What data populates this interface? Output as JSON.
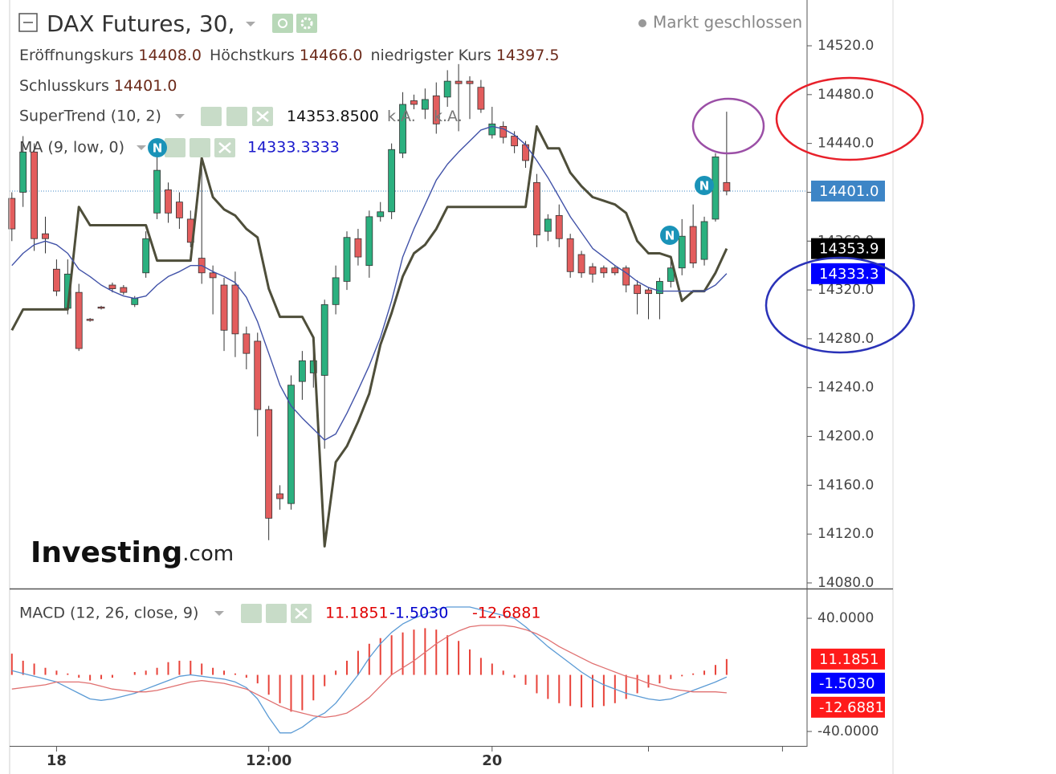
{
  "header": {
    "title": "DAX Futures, 30,",
    "status": "Markt geschlossen",
    "ohlc": [
      {
        "label": "Eröffnungskurs",
        "value": "14408.0"
      },
      {
        "label": "Höchstkurs",
        "value": "14466.0"
      },
      {
        "label": "niedrigster Kurs",
        "value": "14397.5"
      },
      {
        "label": "Schlusskurs",
        "value": "14401.0"
      }
    ]
  },
  "watermark": [
    "Investing",
    ".com"
  ],
  "event_marker": "N",
  "chart_data": [
    {
      "type": "candlestick",
      "up_color": "#2bb07f",
      "down_color": "#e35d5d",
      "xlim": [
        -0.2,
        71.2
      ],
      "ylim": [
        14075.4,
        14557.5
      ],
      "yticks": [
        {
          "value": 14520,
          "label": "14520.0"
        },
        {
          "value": 14480,
          "label": "14480.0"
        },
        {
          "value": 14440,
          "label": "14440.0"
        },
        {
          "value": 14400,
          "label": "14400.0"
        },
        {
          "value": 14360,
          "label": "14360.0"
        },
        {
          "value": 14320,
          "label": "14320.0"
        },
        {
          "value": 14280,
          "label": "14280.0"
        },
        {
          "value": 14240,
          "label": "14240.0"
        },
        {
          "value": 14200,
          "label": "14200.0"
        },
        {
          "value": 14160,
          "label": "14160.0"
        },
        {
          "value": 14120,
          "label": "14120.0"
        },
        {
          "value": 14080,
          "label": "14080.0"
        }
      ],
      "last_price": {
        "value": 14401,
        "label": "14401.0",
        "color": "#3d85c6"
      },
      "open": [
        14395,
        14400,
        14433,
        14366,
        14337,
        14305,
        14318,
        14296,
        14306,
        14324,
        14322,
        14308,
        14334,
        14383,
        14402,
        14392,
        14378,
        14346,
        14334,
        14324,
        14324,
        14284,
        14278,
        14222,
        14153,
        14145,
        14245,
        14252,
        14250,
        14308,
        14327,
        14362,
        14340,
        14380,
        14384,
        14432,
        14475,
        14468,
        14479,
        14478,
        14491,
        14491,
        14486,
        14447,
        14454,
        14446,
        14439,
        14408,
        14368,
        14381,
        14362,
        14349,
        14339,
        14338,
        14338,
        14338,
        14324,
        14320,
        14317,
        14327,
        14338,
        14372,
        14345,
        14378,
        14408
      ],
      "high": [
        14400,
        14446,
        14440,
        14380,
        14345,
        14345,
        14325,
        14297,
        14307,
        14326,
        14324,
        14315,
        14368,
        14430,
        14408,
        14400,
        14385,
        14430,
        14340,
        14330,
        14335,
        14290,
        14285,
        14225,
        14160,
        14250,
        14270,
        14280,
        14312,
        14340,
        14368,
        14370,
        14385,
        14392,
        14440,
        14482,
        14480,
        14485,
        14490,
        14500,
        14505,
        14495,
        14492,
        14470,
        14458,
        14450,
        14442,
        14415,
        14382,
        14390,
        14366,
        14352,
        14342,
        14340,
        14340,
        14340,
        14328,
        14322,
        14330,
        14348,
        14378,
        14390,
        14380,
        14432,
        14466
      ],
      "low": [
        14360,
        14388,
        14352,
        14350,
        14315,
        14300,
        14270,
        14294,
        14304,
        14318,
        14316,
        14306,
        14330,
        14378,
        14375,
        14370,
        14355,
        14325,
        14300,
        14270,
        14265,
        14255,
        14200,
        14115,
        14140,
        14140,
        14230,
        14240,
        14190,
        14300,
        14320,
        14340,
        14330,
        14376,
        14378,
        14428,
        14468,
        14460,
        14448,
        14470,
        14450,
        14460,
        14465,
        14444,
        14440,
        14432,
        14420,
        14355,
        14360,
        14355,
        14330,
        14330,
        14326,
        14330,
        14332,
        14318,
        14300,
        14296,
        14296,
        14322,
        14332,
        14338,
        14340,
        14376,
        14397.5
      ],
      "close": [
        14370,
        14433,
        14362,
        14362,
        14319,
        14333,
        14272,
        14295,
        14305,
        14321,
        14318,
        14313,
        14362,
        14418,
        14383,
        14379,
        14359,
        14334,
        14330,
        14287,
        14284,
        14268,
        14222,
        14133,
        14149,
        14242,
        14262,
        14262,
        14308,
        14330,
        14363,
        14347,
        14380,
        14384,
        14435,
        14472,
        14472,
        14476,
        14456,
        14491,
        14489,
        14489,
        14468,
        14456,
        14445,
        14438,
        14426,
        14365,
        14378,
        14362,
        14335,
        14334,
        14333,
        14334,
        14334,
        14324,
        14317,
        14317,
        14327,
        14338,
        14364,
        14342,
        14376,
        14429,
        14401
      ],
      "series": [
        {
          "name": "SuperTrend (10, 2)",
          "color": "#4e4e3a",
          "width": 3,
          "text_color": "#111111",
          "legend_values": [
            "14353.8500",
            "k.A.",
            "k.A."
          ],
          "badge": "14353.9",
          "badge_color": "#000000",
          "values": [
            14287,
            14304,
            14304,
            14304,
            14304,
            14304,
            14388,
            14373,
            14373,
            14373,
            14373,
            14373,
            14373,
            14344,
            14344,
            14344,
            14344,
            14428,
            14396,
            14386,
            14381,
            14370,
            14363,
            14321,
            14298,
            14298,
            14298,
            14281,
            14110,
            14179,
            14192,
            14212,
            14235,
            14275,
            14301,
            14331,
            14350,
            14357,
            14370,
            14388,
            14388,
            14388,
            14388,
            14388,
            14388,
            14388,
            14388,
            14454,
            14436,
            14436,
            14416,
            14405,
            14396,
            14393,
            14390,
            14383,
            14360,
            14350,
            14350,
            14347,
            14311,
            14319,
            14319,
            14334,
            14353.85
          ]
        },
        {
          "name": "MA (9, low, 0)",
          "color": "#4152a8",
          "width": 1.4,
          "text_color": "#1a1acc",
          "legend_values": [
            "14333.3333"
          ],
          "badge": "14333.3",
          "badge_color": "#0000ff",
          "values": [
            14340,
            14350,
            14357,
            14360,
            14357,
            14350,
            14337,
            14331,
            14324,
            14319,
            14315,
            14313,
            14315,
            14324,
            14331,
            14335,
            14340,
            14340,
            14335,
            14331,
            14326,
            14314,
            14294,
            14268,
            14242,
            14225,
            14215,
            14206,
            14197,
            14202,
            14219,
            14238,
            14258,
            14281,
            14311,
            14347,
            14370,
            14390,
            14410,
            14423,
            14433,
            14442,
            14451,
            14454,
            14452,
            14447,
            14439,
            14426,
            14412,
            14396,
            14380,
            14367,
            14354,
            14347,
            14340,
            14334,
            14327,
            14322,
            14319,
            14319,
            14319,
            14319,
            14319,
            14324,
            14333.3333
          ]
        }
      ]
    },
    {
      "type": "macd",
      "title": "MACD (12, 26, close, 9)",
      "xlim": [
        -0.2,
        71.2
      ],
      "ylim": [
        -50.2,
        59.9
      ],
      "yticks": [
        {
          "value": 40,
          "label": "40.0000"
        },
        {
          "value": -40,
          "label": "-40.0000"
        }
      ],
      "xticks": [
        {
          "value": 4,
          "label": "18"
        },
        {
          "value": 23,
          "label": "12:00"
        },
        {
          "value": 43,
          "label": "20"
        },
        {
          "value": 57,
          "label": null
        },
        {
          "value": 69,
          "label": null
        }
      ],
      "series": [
        {
          "style": "histogram",
          "color": "#e8433a",
          "text_color": "#e00000",
          "badge_color": "#ff1a1a",
          "value_label": "11.1851",
          "values": [
            15,
            10,
            8,
            5,
            3,
            1,
            -2,
            -4,
            -3,
            -2,
            0,
            2,
            3,
            5,
            9,
            10,
            10,
            8,
            5,
            3,
            1,
            -2,
            -6,
            -14,
            -20,
            -26,
            -25,
            -18,
            -8,
            3,
            10,
            17,
            22,
            26,
            28,
            30,
            32,
            33,
            32,
            28,
            24,
            18,
            12,
            8,
            3,
            -2,
            -7,
            -13,
            -17,
            -20,
            -22,
            -23,
            -23,
            -22,
            -20,
            -17,
            -13,
            -9,
            -6,
            -3,
            -1,
            1,
            3,
            7,
            11.1851
          ]
        },
        {
          "style": "line",
          "color": "#5b9bd5",
          "text_color": "#0000cc",
          "badge_color": "#0000ff",
          "value_label": "-1.5030",
          "values": [
            3,
            1,
            -1,
            -3,
            -5,
            -9,
            -13,
            -17,
            -18,
            -17,
            -15,
            -13,
            -10,
            -7,
            -4,
            -1,
            0,
            -1,
            -2,
            -3,
            -5,
            -9,
            -17,
            -30,
            -41,
            -41,
            -37,
            -31,
            -27,
            -20,
            -10,
            0,
            12,
            22,
            30,
            36,
            40,
            43,
            46,
            48,
            48,
            48,
            46,
            44,
            42,
            40,
            34,
            27,
            20,
            14,
            8,
            2,
            -3,
            -7,
            -10,
            -13,
            -15,
            -17,
            -18,
            -17,
            -14,
            -11,
            -8,
            -5,
            -1.503
          ]
        },
        {
          "style": "line",
          "color": "#e07070",
          "text_color": "#e00000",
          "badge_color": "#ff1a1a",
          "value_label": "-12.6881",
          "values": [
            -10,
            -9,
            -8,
            -7,
            -5,
            -5,
            -5,
            -6,
            -8,
            -10,
            -11,
            -12,
            -12,
            -11,
            -9,
            -7,
            -5,
            -4,
            -5,
            -6,
            -8,
            -10,
            -14,
            -18,
            -22,
            -25,
            -27,
            -29,
            -30,
            -29,
            -27,
            -22,
            -16,
            -8,
            0,
            5,
            10,
            16,
            22,
            27,
            31,
            34,
            35,
            35,
            35,
            34,
            32,
            29,
            25,
            20,
            16,
            12,
            8,
            5,
            2,
            -1,
            -3,
            -6,
            -8,
            -10,
            -11,
            -12,
            -12,
            -12,
            -12.6881
          ]
        }
      ]
    }
  ]
}
